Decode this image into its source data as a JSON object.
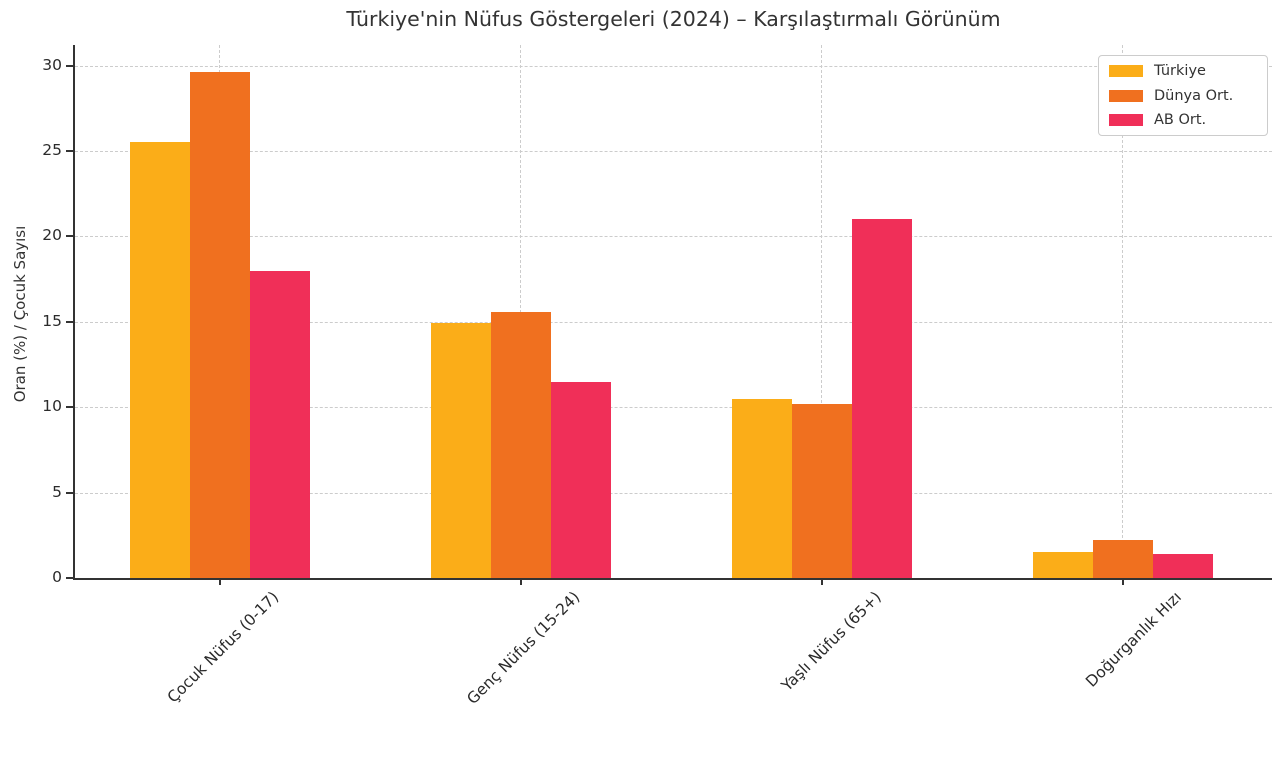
{
  "chart_data": {
    "type": "bar",
    "title": "Türkiye'nin Nüfus Göstergeleri (2024) – Karşılaştırmalı Görünüm",
    "xlabel": "",
    "ylabel": "Oran (%) / Çocuk Sayısı",
    "categories": [
      "Çocuk Nüfus (0-17)",
      "Genç Nüfus (15-24)",
      "Yaşlı Nüfus (65+)",
      "Doğurganlık Hızı"
    ],
    "series": [
      {
        "name": "Türkiye",
        "color": "#FBAD18",
        "values": [
          25.5,
          14.9,
          10.5,
          1.5
        ]
      },
      {
        "name": "Dünya Ort.",
        "color": "#F0701F",
        "values": [
          29.6,
          15.6,
          10.2,
          2.2
        ]
      },
      {
        "name": "AB Ort.",
        "color": "#F02F58",
        "values": [
          18.0,
          11.5,
          21.0,
          1.4
        ]
      }
    ],
    "yticks": [
      0,
      5,
      10,
      15,
      20,
      25,
      30
    ],
    "ylim": [
      0,
      31.2
    ],
    "grid": true,
    "grid_style": "dashed",
    "grid_color": "#cccccc",
    "legend_position": "upper right",
    "text_color": "#333333",
    "background_color": "#ffffff"
  }
}
